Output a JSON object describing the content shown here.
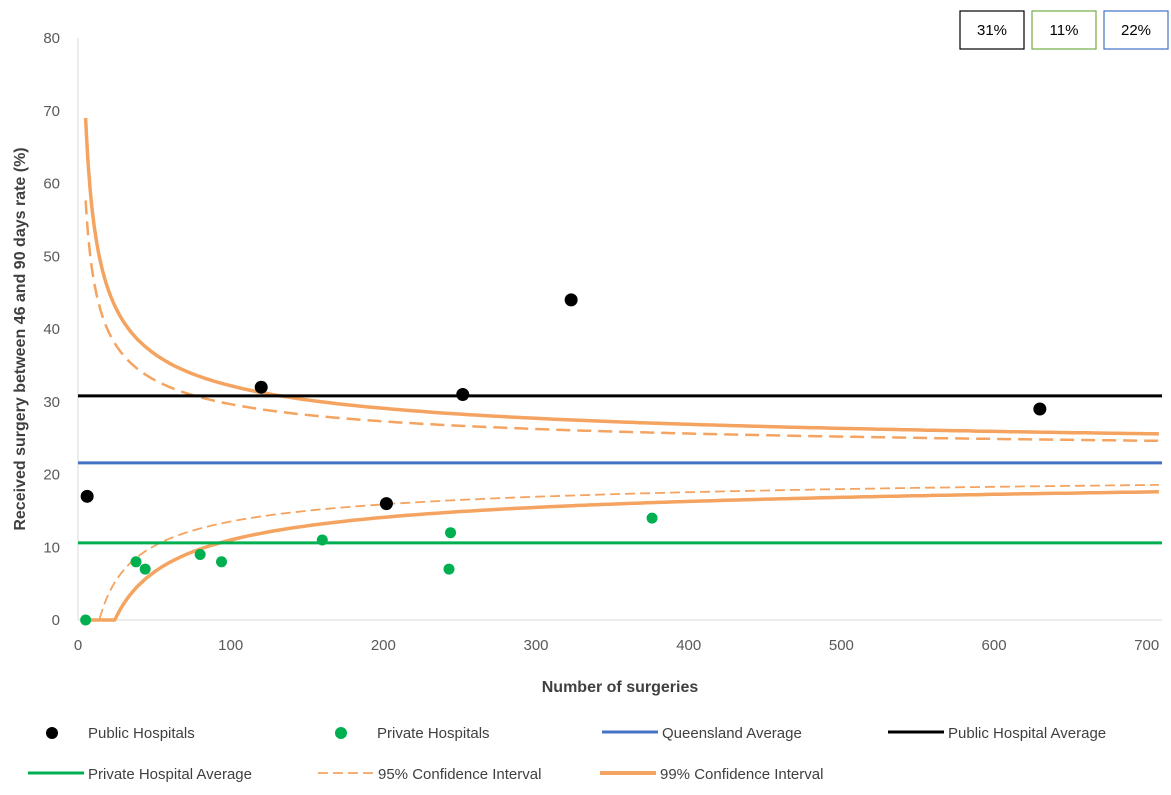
{
  "chart_data": {
    "type": "scatter",
    "title": "",
    "xlabel": "Number of surgeries",
    "ylabel": "Received surgery between 46 and 90 days rate (%)",
    "xlim": [
      0,
      710
    ],
    "ylim": [
      0,
      80
    ],
    "x_ticks": [
      0,
      100,
      200,
      300,
      400,
      500,
      600,
      700
    ],
    "y_ticks": [
      0,
      10,
      20,
      30,
      40,
      50,
      60,
      70,
      80
    ],
    "grid": false,
    "legend_position": "bottom",
    "summary_boxes": [
      {
        "label": "31%",
        "color": "#000000"
      },
      {
        "label": "11%",
        "color": "#70AD47"
      },
      {
        "label": "22%",
        "color": "#4472C4"
      }
    ],
    "series": [
      {
        "name": "Public Hospitals",
        "kind": "points",
        "color": "#000000",
        "points": [
          [
            6,
            17
          ],
          [
            120,
            32
          ],
          [
            202,
            16
          ],
          [
            252,
            31
          ],
          [
            323,
            44
          ],
          [
            630,
            29
          ]
        ]
      },
      {
        "name": "Private Hospitals",
        "kind": "points",
        "color": "#00B050",
        "points": [
          [
            5,
            0
          ],
          [
            38,
            8
          ],
          [
            44,
            7
          ],
          [
            80,
            9
          ],
          [
            94,
            8
          ],
          [
            160,
            11
          ],
          [
            243,
            7
          ],
          [
            244,
            12
          ],
          [
            376,
            14
          ]
        ]
      },
      {
        "name": "Queensland Average",
        "kind": "hline",
        "color": "#4472C4",
        "value": 21.6
      },
      {
        "name": "Public Hospital Average",
        "kind": "hline",
        "color": "#000000",
        "value": 30.8
      },
      {
        "name": "Private Hospital Average",
        "kind": "hline",
        "color": "#00B050",
        "value": 10.6
      },
      {
        "name": "95% Confidence Interval",
        "kind": "band",
        "color": "#F4A460",
        "center": 21.6,
        "z": 1.96,
        "x_start": 5
      },
      {
        "name": "99% Confidence Interval",
        "kind": "band",
        "color": "#F4A460",
        "center": 21.6,
        "z": 2.576,
        "x_start": 5
      }
    ]
  }
}
